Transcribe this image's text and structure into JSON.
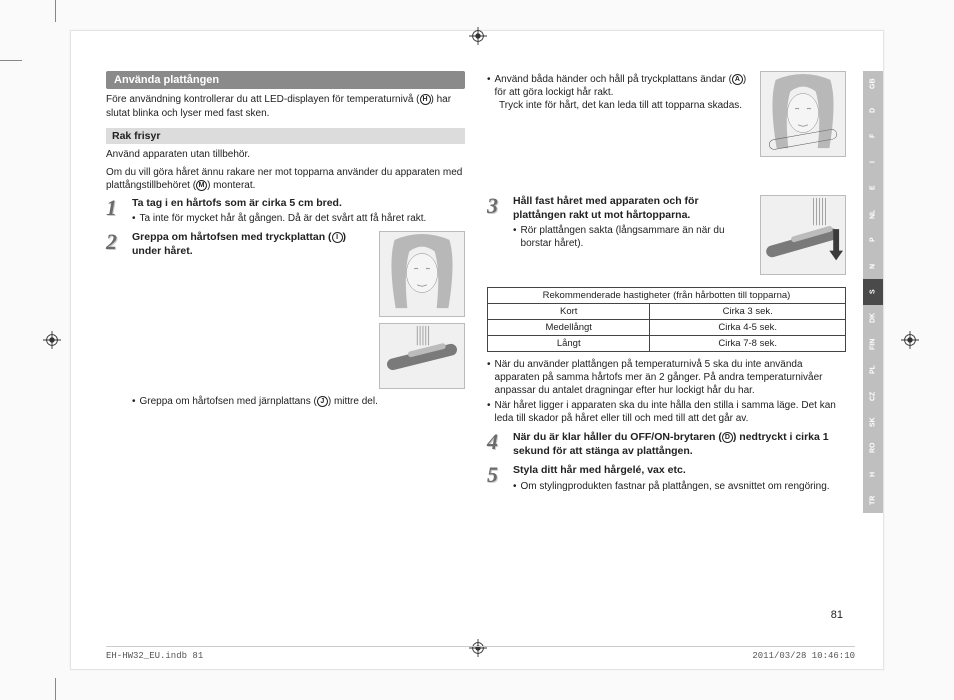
{
  "section_title": "Använda plattången",
  "intro_before": "Före användning kontrollerar du att LED-displayen för temperaturnivå (",
  "intro_ref": "H",
  "intro_after": ") har slutat blinka och lyser med fast sken.",
  "sub_title": "Rak frisyr",
  "sub_p1": "Använd apparaten utan tillbehör.",
  "sub_p2_before": "Om du vill göra håret ännu rakare ner mot topparna använder du apparaten med plattångstillbehöret (",
  "sub_p2_ref": "M",
  "sub_p2_after": ") monterat.",
  "steps": {
    "s1": {
      "num": "1",
      "title": "Ta tag i en hårtofs som är cirka 5 cm bred.",
      "b1": "Ta inte för mycket hår åt gången. Då är det svårt att få håret rakt."
    },
    "s2": {
      "num": "2",
      "title_before": "Greppa om hårtofsen med tryckplattan (",
      "title_ref": "I",
      "title_after": ") under håret.",
      "b1_before": "Greppa om hårtofsen med järnplattans (",
      "b1_ref": "J",
      "b1_after": ") mittre del."
    },
    "r_top": {
      "b1_before": "Använd båda händer och håll på tryckplattans ändar (",
      "b1_ref": "A",
      "b1_after": ") för att göra lockigt hår rakt.",
      "b2": "Tryck inte för hårt, det kan leda till att topparna skadas."
    },
    "s3": {
      "num": "3",
      "title": "Håll fast håret med apparaten och för plattången rakt ut mot hårtopparna.",
      "b1": "Rör plattången sakta (långsammare än när du borstar håret)."
    },
    "s4": {
      "num": "4",
      "title_before": "När du är klar håller du OFF/ON-brytaren (",
      "title_ref": "D",
      "title_after": ") nedtryckt i cirka 1 sekund för att stänga av plattången."
    },
    "s5": {
      "num": "5",
      "title": "Styla ditt hår med hårgelé, vax etc.",
      "b1": "Om stylingprodukten fastnar på plattången, se avsnittet om rengöring."
    }
  },
  "table": {
    "header": "Rekommenderade hastigheter (från hårbotten till topparna)",
    "rows": [
      {
        "len": "Kort",
        "time": "Cirka 3 sek."
      },
      {
        "len": "Medellångt",
        "time": "Cirka 4-5 sek."
      },
      {
        "len": "Långt",
        "time": "Cirka 7-8 sek."
      }
    ]
  },
  "post_bullets": {
    "b1": "När du använder plattången på temperaturnivå 5 ska du inte använda apparaten på samma hårtofs mer än 2 gånger. På andra temperaturnivåer anpassar du antalet dragningar efter hur lockigt hår du har.",
    "b2": "När håret ligger i apparaten ska du inte hålla den stilla i samma läge. Det kan leda till skador på håret eller till och med till att det går av."
  },
  "lang_tabs": [
    {
      "code": "GB",
      "color": "#bfbfbf"
    },
    {
      "code": "D",
      "color": "#bfbfbf"
    },
    {
      "code": "F",
      "color": "#bfbfbf"
    },
    {
      "code": "I",
      "color": "#bfbfbf"
    },
    {
      "code": "E",
      "color": "#bfbfbf"
    },
    {
      "code": "NL",
      "color": "#bfbfbf"
    },
    {
      "code": "P",
      "color": "#bfbfbf"
    },
    {
      "code": "N",
      "color": "#bfbfbf"
    },
    {
      "code": "S",
      "color": "#4a4a4a"
    },
    {
      "code": "DK",
      "color": "#bfbfbf"
    },
    {
      "code": "FIN",
      "color": "#bfbfbf"
    },
    {
      "code": "PL",
      "color": "#bfbfbf"
    },
    {
      "code": "CZ",
      "color": "#bfbfbf"
    },
    {
      "code": "SK",
      "color": "#bfbfbf"
    },
    {
      "code": "RO",
      "color": "#bfbfbf"
    },
    {
      "code": "H",
      "color": "#bfbfbf"
    },
    {
      "code": "TR",
      "color": "#bfbfbf"
    }
  ],
  "page_number": "81",
  "footer": {
    "file": "EH-HW32_EU.indb   81",
    "timestamp": "2011/03/28   10:46:10"
  }
}
